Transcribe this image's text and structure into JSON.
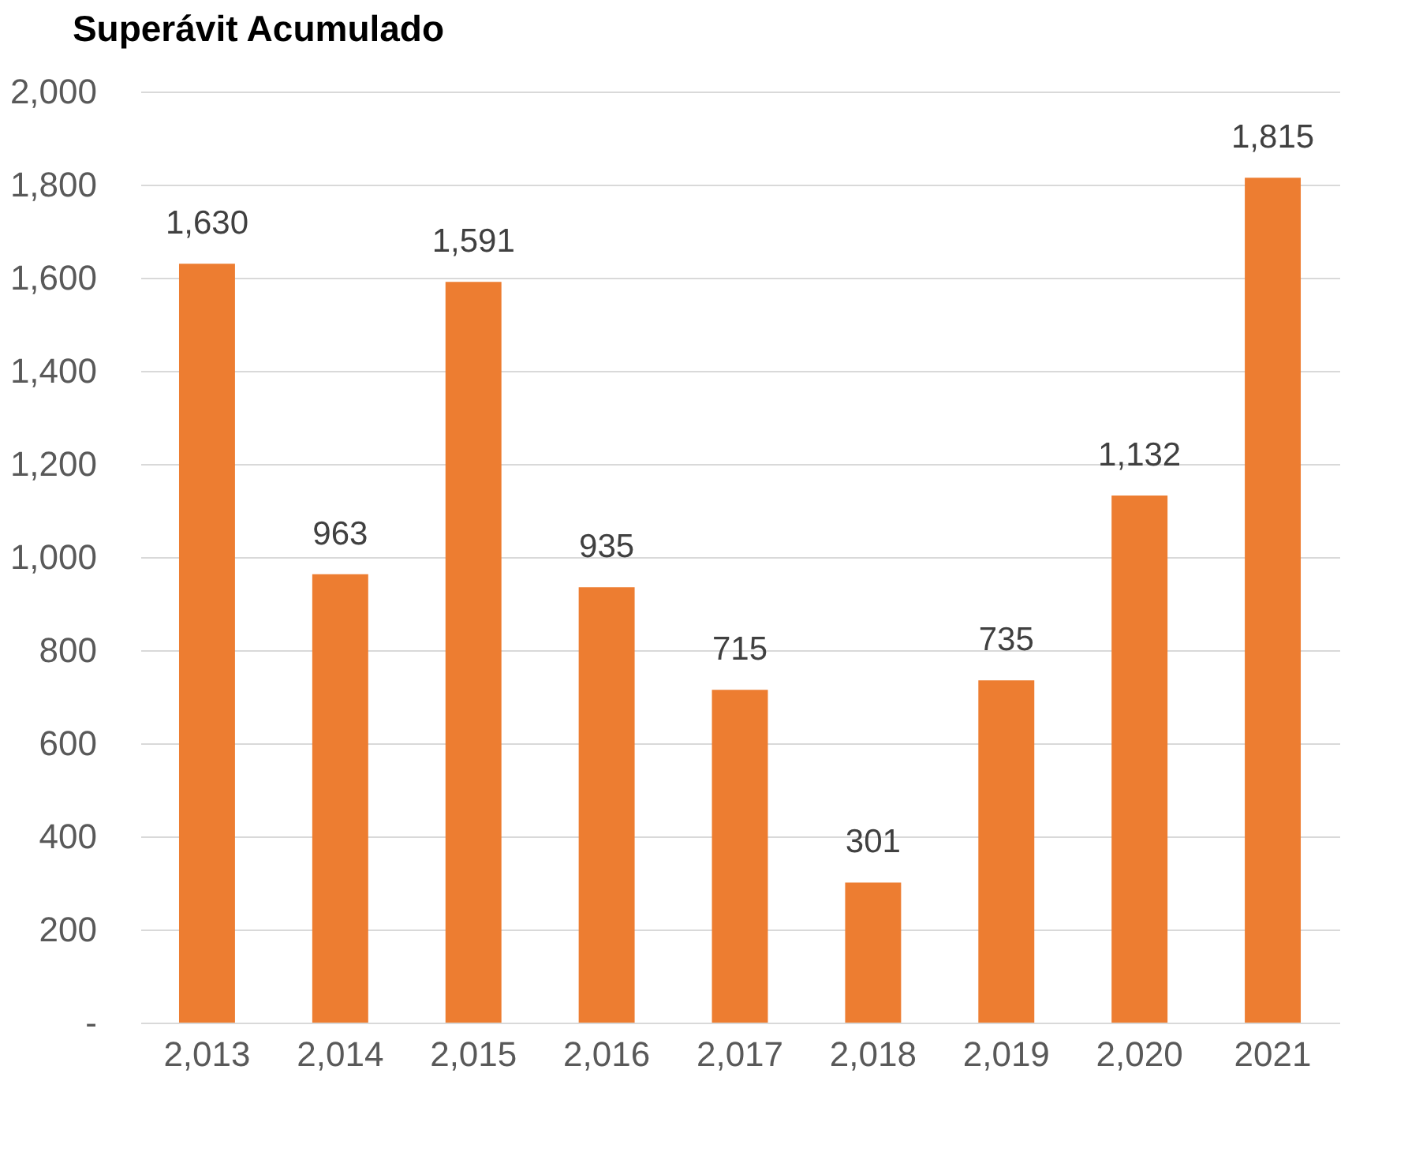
{
  "chart_data": {
    "type": "bar",
    "title": "Superávit Acumulado",
    "categories": [
      "2,013",
      "2,014",
      "2,015",
      "2,016",
      "2,017",
      "2,018",
      "2,019",
      "2,020",
      "2021"
    ],
    "values": [
      1630,
      963,
      1591,
      935,
      715,
      301,
      735,
      1132,
      1815
    ],
    "color": "#ed7d31",
    "ylim": [
      0,
      2000
    ],
    "yticks": [
      {
        "value": 0,
        "label": "-"
      },
      200,
      400,
      600,
      800,
      {
        "value": 1000,
        "label": "1,000"
      },
      {
        "value": 1200,
        "label": "1,200"
      },
      {
        "value": 1400,
        "label": "1,400"
      },
      {
        "value": 1600,
        "label": "1,600"
      },
      {
        "value": 1800,
        "label": "1,800"
      },
      {
        "value": 2000,
        "label": "2,000"
      }
    ],
    "value_labels": [
      "1,630",
      "963",
      "1,591",
      "935",
      "715",
      "301",
      "735",
      "1,132",
      "1,815"
    ],
    "grid": "y"
  }
}
